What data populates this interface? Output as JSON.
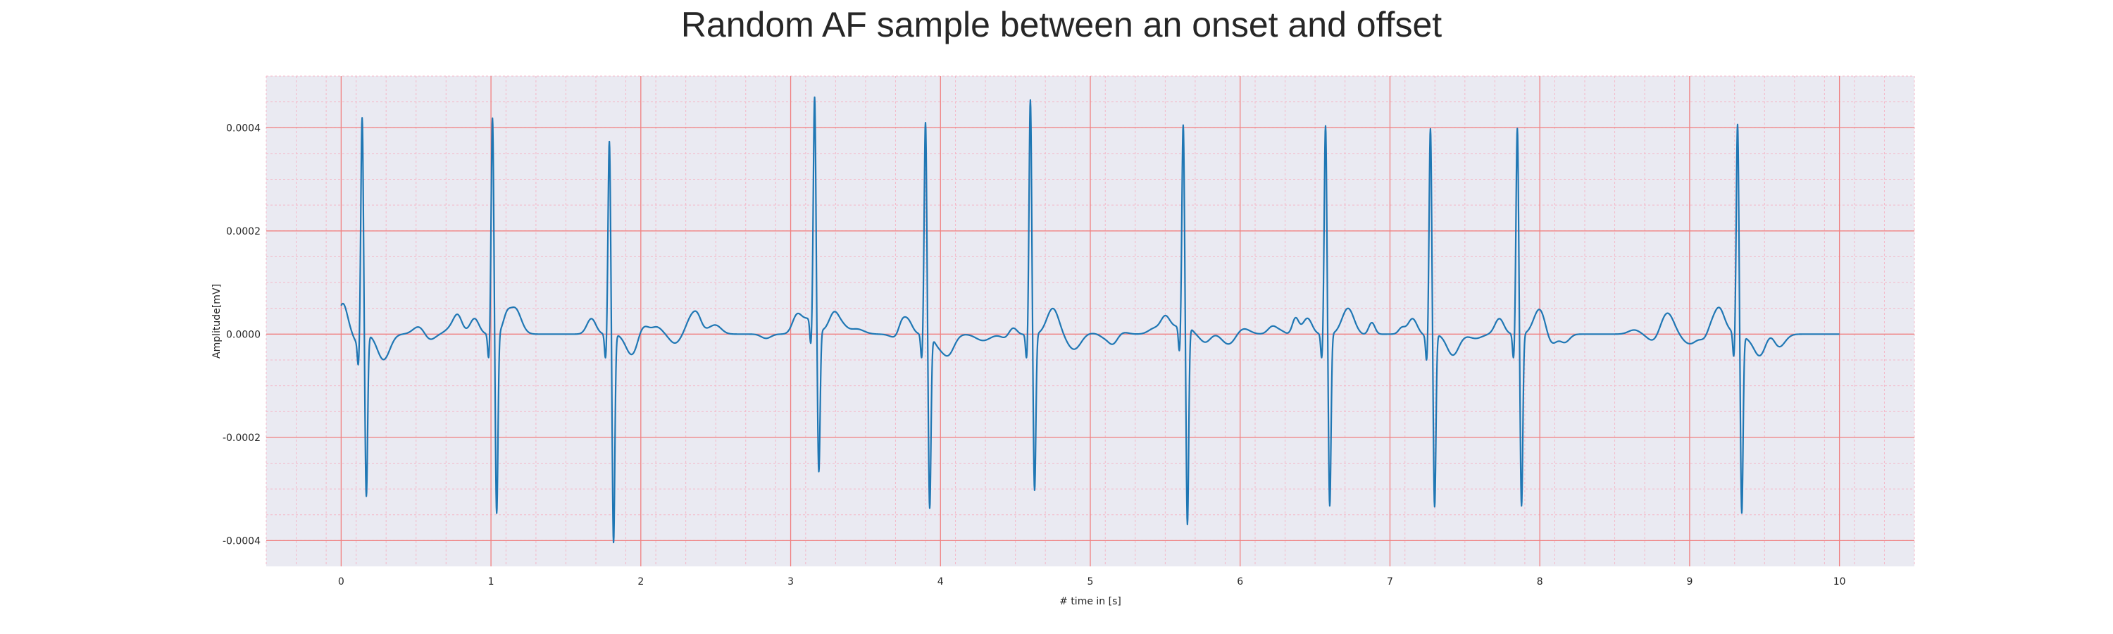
{
  "chart_data": {
    "type": "line",
    "title": "Random AF sample between an onset and offset",
    "xlabel": "# time in [s]",
    "ylabel": "Amplitude[mV]",
    "xlim": [
      -0.5,
      10.5
    ],
    "ylim": [
      -0.00045,
      0.0005
    ],
    "x_ticks": [
      0,
      1,
      2,
      3,
      4,
      5,
      6,
      7,
      8,
      9,
      10
    ],
    "x_tick_labels": [
      "0",
      "1",
      "2",
      "3",
      "4",
      "5",
      "6",
      "7",
      "8",
      "9",
      "10"
    ],
    "y_ticks": [
      -0.0004,
      -0.0002,
      0.0,
      0.0002,
      0.0004
    ],
    "y_tick_labels": [
      "-0.0004",
      "-0.0002",
      "0.0000",
      "0.0002",
      "0.0004"
    ],
    "grid": true,
    "grid_major_color": "#f08080",
    "grid_minor_color": "#f4b8c8",
    "background_color": "#eaeaf2",
    "series": [
      {
        "color": "#1f77b4",
        "x_start": 0,
        "x_end": 10,
        "beats": [
          {
            "t": 0.14,
            "r": 0.000425,
            "s": -0.000315
          },
          {
            "t": 1.01,
            "r": 0.00042,
            "s": -0.00035
          },
          {
            "t": 1.79,
            "r": 0.000375,
            "s": -0.000405
          },
          {
            "t": 3.16,
            "r": 0.00044,
            "s": -0.00028
          },
          {
            "t": 3.9,
            "r": 0.000412,
            "s": -0.000335
          },
          {
            "t": 4.6,
            "r": 0.000455,
            "s": -0.000305
          },
          {
            "t": 5.62,
            "r": 0.000393,
            "s": -0.000385
          },
          {
            "t": 6.57,
            "r": 0.000405,
            "s": -0.000335
          },
          {
            "t": 7.27,
            "r": 0.000403,
            "s": -0.000335
          },
          {
            "t": 7.85,
            "r": 0.0004,
            "s": -0.000335
          },
          {
            "t": 9.32,
            "r": 0.000408,
            "s": -0.000345
          }
        ]
      }
    ]
  }
}
